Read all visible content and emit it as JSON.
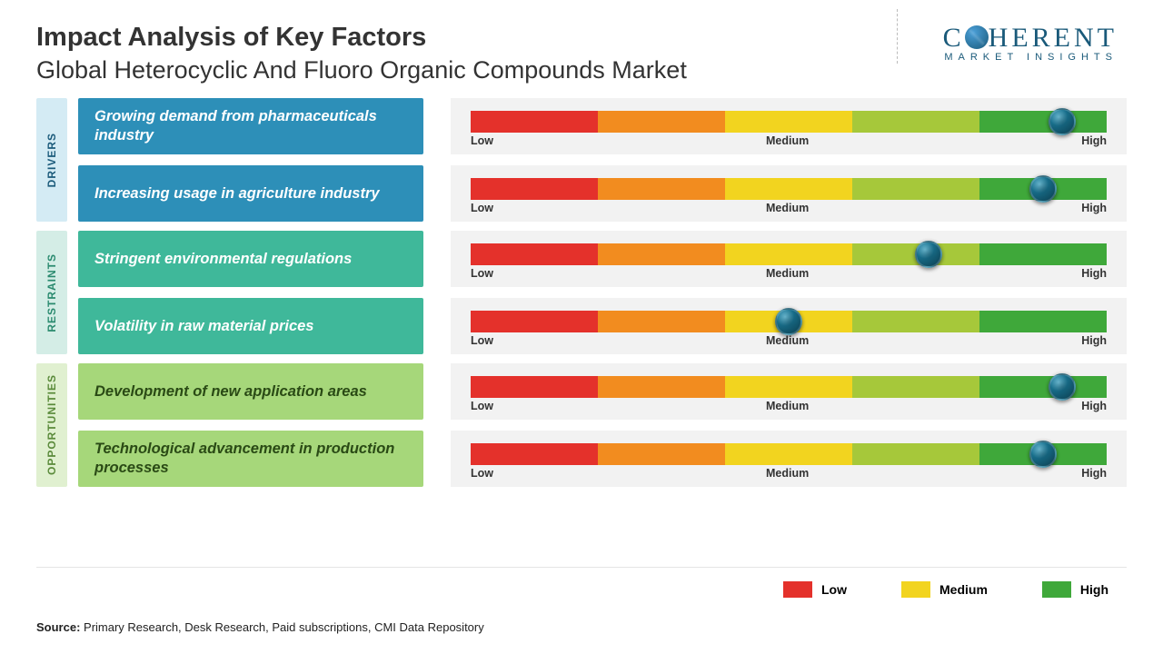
{
  "header": {
    "title": "Impact Analysis of Key Factors",
    "subtitle": "Global Heterocyclic And Fluoro Organic Compounds Market"
  },
  "logo": {
    "name": "COHERENT",
    "tagline": "MARKET INSIGHTS",
    "color": "#1a5a7a"
  },
  "categories": [
    {
      "label": "DRIVERS",
      "tab_bg": "#d4ebf4",
      "tab_text": "#1a5a7a",
      "factor_bg": "#2d8fb8",
      "factor_text": "#ffffff",
      "factors": [
        {
          "text": "Growing demand from pharmaceuticals industry",
          "marker_pct": 93
        },
        {
          "text": "Increasing usage in agriculture industry",
          "marker_pct": 90
        }
      ]
    },
    {
      "label": "RESTRAINTS",
      "tab_bg": "#d4ede6",
      "tab_text": "#2a8a6f",
      "factor_bg": "#3fb89a",
      "factor_text": "#ffffff",
      "factors": [
        {
          "text": "Stringent environmental regulations",
          "marker_pct": 72
        },
        {
          "text": "Volatility in raw material prices",
          "marker_pct": 50
        }
      ]
    },
    {
      "label": "OPPORTUNITIES",
      "tab_bg": "#e0f0d0",
      "tab_text": "#5a8a3a",
      "factor_bg": "#a6d77a",
      "factor_text": "#2a4a15",
      "factors": [
        {
          "text": "Development of new application areas",
          "marker_pct": 93
        },
        {
          "text": "Technological advancement in production processes",
          "marker_pct": 90
        }
      ]
    }
  ],
  "gauge": {
    "segments": [
      {
        "color": "#e4312b"
      },
      {
        "color": "#f28c1f"
      },
      {
        "color": "#f2d41f"
      },
      {
        "color": "#a6c83a"
      },
      {
        "color": "#3fa83a"
      }
    ],
    "axis_low": "Low",
    "axis_mid": "Medium",
    "axis_high": "High"
  },
  "legend": {
    "low": {
      "label": "Low",
      "color": "#e4312b"
    },
    "medium": {
      "label": "Medium",
      "color": "#f2d41f"
    },
    "high": {
      "label": "High",
      "color": "#3fa83a"
    }
  },
  "source": {
    "prefix": "Source:",
    "text": "Primary Research, Desk Research, Paid subscriptions, CMI Data Repository"
  }
}
